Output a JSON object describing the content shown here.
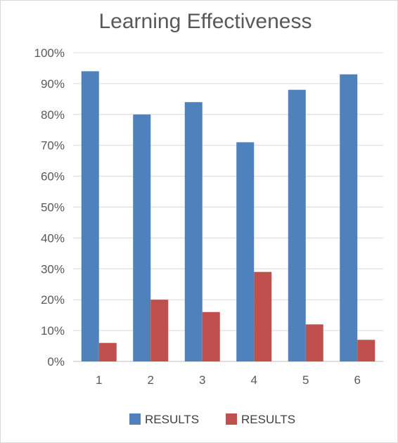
{
  "chart_data": {
    "type": "bar",
    "title": "Learning Effectiveness",
    "categories": [
      "1",
      "2",
      "3",
      "4",
      "5",
      "6"
    ],
    "series": [
      {
        "name": "RESULTS",
        "color": "#4f81bd",
        "values": [
          94,
          80,
          84,
          71,
          88,
          93
        ]
      },
      {
        "name": "RESULTS",
        "color": "#c0504d",
        "values": [
          6,
          20,
          16,
          29,
          12,
          7
        ]
      }
    ],
    "ylim": [
      0,
      100
    ],
    "y_ticks": [
      "0%",
      "10%",
      "20%",
      "30%",
      "40%",
      "50%",
      "60%",
      "70%",
      "80%",
      "90%",
      "100%"
    ],
    "y_unit": "%",
    "grid": true,
    "legend_position": "bottom"
  }
}
